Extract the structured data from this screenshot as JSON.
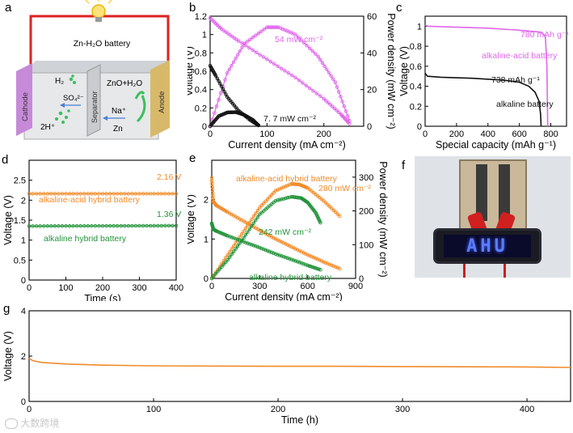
{
  "panel_labels": {
    "a": "a",
    "b": "b",
    "c": "c",
    "d": "d",
    "e": "e",
    "f": "f",
    "g": "g"
  },
  "schematic": {
    "title": "Zn-H₂O battery",
    "cathode": "Cathode",
    "separator": "Separator",
    "anode": "Anode",
    "h2": "H₂",
    "so4": "SO₄²⁻",
    "two_h": "2H⁺",
    "zno_h2o": "ZnO+H₂O",
    "na": "Na⁺",
    "zn": "Zn"
  },
  "photo": {
    "display_text": "AHU"
  },
  "watermark": "大数跨境",
  "colors": {
    "pink": "#e066ec",
    "black": "#111111",
    "orange": "#f08c2a",
    "green": "#23933a"
  },
  "chart_data": [
    {
      "id": "b",
      "type": "line",
      "xlabel": "Current density (mA cm⁻²)",
      "ylabel": "Voltage (V)",
      "y2label": "Power density (mW cm⁻²)",
      "xlim": [
        0,
        270
      ],
      "ylim": [
        0,
        1.2
      ],
      "y2lim": [
        0,
        60
      ],
      "xticks": [
        0,
        100,
        200
      ],
      "yticks": [
        0,
        0.2,
        0.4,
        0.6,
        0.8,
        1.0,
        1.2
      ],
      "y2ticks": [
        0,
        20,
        40,
        60
      ],
      "series": [
        {
          "name": "pink voltage",
          "color": "#e066ec",
          "axis": "y",
          "x": [
            0,
            20,
            50,
            100,
            150,
            200,
            230,
            245
          ],
          "y": [
            1.18,
            1.06,
            0.93,
            0.73,
            0.53,
            0.3,
            0.13,
            0.03
          ]
        },
        {
          "name": "pink power",
          "color": "#e066ec",
          "axis": "y2",
          "x": [
            0,
            30,
            60,
            100,
            120,
            150,
            190,
            220,
            245
          ],
          "y": [
            0,
            29,
            45,
            54,
            54,
            50,
            38,
            24,
            3
          ]
        },
        {
          "name": "black voltage",
          "color": "#111111",
          "axis": "y",
          "x": [
            0,
            10,
            30,
            50,
            70,
            85
          ],
          "y": [
            0.66,
            0.55,
            0.32,
            0.17,
            0.07,
            0.01
          ]
        },
        {
          "name": "black power",
          "color": "#111111",
          "axis": "y2",
          "x": [
            0,
            15,
            30,
            45,
            60,
            75,
            85
          ],
          "y": [
            0,
            5.5,
            7.5,
            7.7,
            6.2,
            3.5,
            0.5
          ]
        }
      ],
      "annotations": [
        "54 mW cm⁻²",
        "7. 7 mW cm⁻²"
      ]
    },
    {
      "id": "c",
      "type": "line",
      "xlabel": "Special capacity (mAh g⁻¹)",
      "ylabel": "Voltage (V)",
      "xlim": [
        0,
        900
      ],
      "ylim": [
        0,
        1.1
      ],
      "xticks": [
        0,
        200,
        400,
        600,
        800
      ],
      "yticks": [
        0,
        0.2,
        0.4,
        0.6,
        0.8,
        1.0
      ],
      "series": [
        {
          "name": "alkaline-acid battery",
          "color": "#e066ec",
          "x": [
            0,
            20,
            200,
            400,
            600,
            740,
            765,
            775,
            780
          ],
          "y": [
            1.01,
            1.0,
            0.99,
            0.98,
            0.96,
            0.94,
            0.9,
            0.6,
            0.0
          ]
        },
        {
          "name": "alkaline battery",
          "color": "#111111",
          "x": [
            0,
            15,
            100,
            300,
            500,
            600,
            660,
            700,
            725,
            735,
            738
          ],
          "y": [
            0.53,
            0.5,
            0.49,
            0.48,
            0.46,
            0.44,
            0.4,
            0.34,
            0.25,
            0.12,
            0.0
          ]
        }
      ],
      "annotations": [
        "780  mAh g⁻¹",
        "alkaline-acid battery",
        "738  mAh g⁻¹",
        "alkaline battery"
      ]
    },
    {
      "id": "d",
      "type": "line",
      "xlabel": "Time (s)",
      "ylabel": "Voltage (V)",
      "xlim": [
        0,
        400
      ],
      "ylim": [
        0,
        3.0
      ],
      "xticks": [
        0,
        100,
        200,
        300,
        400
      ],
      "yticks": [
        0,
        0.5,
        1.0,
        1.5,
        2.0,
        2.5
      ],
      "series": [
        {
          "name": "alkaline-acid hybrid battery",
          "color": "#f08c2a",
          "x": [
            0,
            400
          ],
          "y": [
            2.16,
            2.16
          ]
        },
        {
          "name": "alkaline hybrid battery",
          "color": "#23933a",
          "x": [
            0,
            400
          ],
          "y": [
            1.35,
            1.36
          ]
        }
      ],
      "annotations": [
        "2.16 V",
        "alkaline-acid hybrid battery",
        "1.36 V",
        "alkaline hybrid battery"
      ]
    },
    {
      "id": "e",
      "type": "line",
      "xlabel": "Current density (mA cm⁻²)",
      "ylabel": "Voltage (V)",
      "y2label": "Power density (mW cm⁻²)",
      "xlim": [
        0,
        900
      ],
      "ylim": [
        0,
        3.0
      ],
      "y2lim": [
        0,
        350
      ],
      "xticks": [
        0,
        300,
        600,
        900
      ],
      "yticks": [
        0,
        1,
        2
      ],
      "y2ticks": [
        0,
        100,
        200,
        300
      ],
      "series": [
        {
          "name": "orange voltage",
          "color": "#f08c2a",
          "axis": "y",
          "x": [
            0,
            10,
            30,
            100,
            200,
            300,
            400,
            500,
            600,
            700,
            800
          ],
          "y": [
            2.55,
            1.95,
            1.85,
            1.68,
            1.45,
            1.22,
            1.0,
            0.8,
            0.6,
            0.42,
            0.25
          ]
        },
        {
          "name": "orange power",
          "color": "#f08c2a",
          "axis": "y2",
          "x": [
            0,
            100,
            200,
            300,
            400,
            500,
            550,
            600,
            700,
            800
          ],
          "y": [
            0,
            70,
            140,
            210,
            260,
            280,
            278,
            268,
            230,
            185
          ]
        },
        {
          "name": "green voltage",
          "color": "#23933a",
          "axis": "y",
          "x": [
            0,
            10,
            30,
            100,
            200,
            300,
            400,
            500,
            600,
            680
          ],
          "y": [
            1.4,
            1.25,
            1.2,
            1.08,
            0.93,
            0.78,
            0.62,
            0.48,
            0.33,
            0.22
          ]
        },
        {
          "name": "green power",
          "color": "#23933a",
          "axis": "y2",
          "x": [
            0,
            100,
            200,
            300,
            400,
            500,
            560,
            600,
            650,
            680
          ],
          "y": [
            0,
            55,
            120,
            190,
            230,
            242,
            238,
            225,
            195,
            165
          ]
        }
      ],
      "annotations": [
        "alkaline-acid hybrid battery",
        "280 mW cm⁻²",
        "242 mW cm⁻²",
        "alkaline hybrid battery"
      ]
    },
    {
      "id": "g",
      "type": "line",
      "xlabel": "Time (h)",
      "ylabel": "Voltage (V)",
      "xlim": [
        0,
        435
      ],
      "ylim": [
        0,
        4
      ],
      "xticks": [
        0,
        100,
        200,
        300,
        400
      ],
      "yticks": [
        0,
        2,
        4
      ],
      "series": [
        {
          "name": "long-term discharge",
          "color": "#f08c2a",
          "x": [
            0,
            3,
            10,
            30,
            60,
            100,
            150,
            200,
            250,
            300,
            350,
            400,
            435
          ],
          "y": [
            1.9,
            1.8,
            1.72,
            1.65,
            1.6,
            1.57,
            1.56,
            1.55,
            1.55,
            1.54,
            1.53,
            1.52,
            1.5
          ]
        }
      ]
    }
  ]
}
